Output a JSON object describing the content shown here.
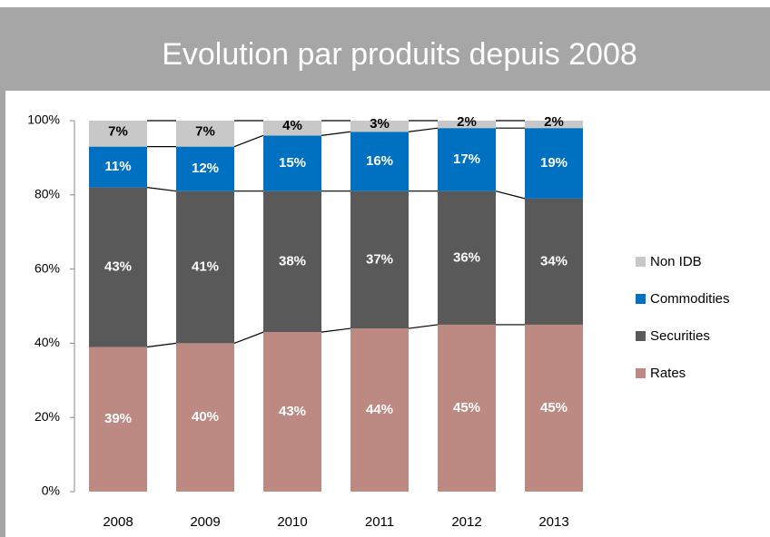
{
  "chart_data": {
    "type": "stacked_bar",
    "title": "Evolution par produits depuis 2008",
    "categories": [
      "2008",
      "2009",
      "2010",
      "2011",
      "2012",
      "2013"
    ],
    "series": [
      {
        "name": "Rates",
        "color": "#bc8a82",
        "values": [
          39,
          40,
          43,
          44,
          45,
          45
        ],
        "value_labels": [
          "39%",
          "40%",
          "43%",
          "44%",
          "45%",
          "45%"
        ]
      },
      {
        "name": "Securities",
        "color": "#595959",
        "values": [
          43,
          41,
          38,
          37,
          36,
          34
        ],
        "value_labels": [
          "43%",
          "41%",
          "38%",
          "37%",
          "36%",
          "34%"
        ]
      },
      {
        "name": "Commodities",
        "color": "#0070c0",
        "values": [
          11,
          12,
          15,
          16,
          17,
          19
        ],
        "value_labels": [
          "11%",
          "12%",
          "15%",
          "16%",
          "17%",
          "19%"
        ]
      },
      {
        "name": "Non IDB",
        "color": "#c8c8c8",
        "values": [
          7,
          7,
          4,
          3,
          2,
          2
        ],
        "value_labels": [
          "7%",
          "7%",
          "4%",
          "3%",
          "2%",
          "2%"
        ]
      }
    ],
    "ylim": [
      0,
      100
    ],
    "yticks": [
      {
        "value": 0,
        "label": "0%"
      },
      {
        "value": 20,
        "label": "20%"
      },
      {
        "value": 40,
        "label": "40%"
      },
      {
        "value": 60,
        "label": "60%"
      },
      {
        "value": 80,
        "label": "80%"
      },
      {
        "value": 100,
        "label": "100%"
      }
    ],
    "legend": "right"
  }
}
